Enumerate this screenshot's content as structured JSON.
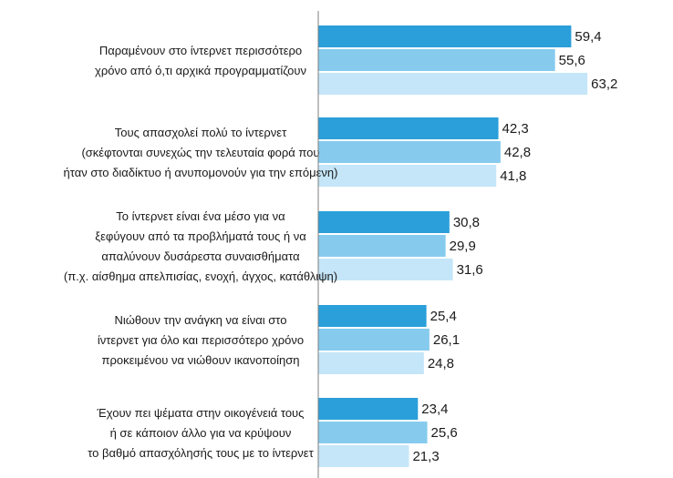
{
  "chart_data": {
    "type": "bar",
    "orientation": "horizontal",
    "title": "",
    "xlabel": "",
    "ylabel": "",
    "xlim": [
      0,
      70
    ],
    "grid": false,
    "legend": "none",
    "categories": [
      [
        "Παραμένουν στο ίντερνετ περισσότερο",
        "χρόνο από ό,τι αρχικά προγραμματίζουν"
      ],
      [
        "Τους απασχολεί πολύ το ίντερνετ",
        "(σκέφτονται συνεχώς την τελευταία φορά που",
        "ήταν στο διαδίκτυο ή ανυπομονούν για την επόμενη)"
      ],
      [
        "Το ίντερνετ είναι ένα μέσο για να",
        "ξεφύγουν από τα προβλήματά τους ή να",
        "απαλύνουν δυσάρεστα συναισθήματα",
        "(π.χ. αίσθημα απελπισίας, ενοχή, άγχος, κατάθλιψη)"
      ],
      [
        "Νιώθουν την ανάγκη να είναι στο",
        "ίντερνετ για όλο και περισσότερο χρόνο",
        "προκειμένου να νιώθουν ικανοποίηση"
      ],
      [
        "Έχουν πει ψέματα στην οικογένειά τους",
        "ή σε κάποιον άλλο για να κρύψουν",
        "το βαθμό απασχόλησής τους με το ίντερνετ"
      ]
    ],
    "series": [
      {
        "name": "series-1",
        "color": "#2a9fd9",
        "values": [
          59.4,
          42.3,
          30.8,
          25.4,
          23.4
        ],
        "labels": [
          "59,4",
          "42,3",
          "30,8",
          "25,4",
          "23,4"
        ]
      },
      {
        "name": "series-2",
        "color": "#86cbee",
        "values": [
          55.6,
          42.8,
          29.9,
          26.1,
          25.6
        ],
        "labels": [
          "55,6",
          "42,8",
          "29,9",
          "26,1",
          "25,6"
        ]
      },
      {
        "name": "series-3",
        "color": "#c4e6f8",
        "values": [
          63.2,
          41.8,
          31.6,
          24.8,
          21.3
        ],
        "labels": [
          "63,2",
          "41,8",
          "31,6",
          "24,8",
          "21,3"
        ]
      }
    ],
    "axis_color": "#7f7f7f"
  }
}
